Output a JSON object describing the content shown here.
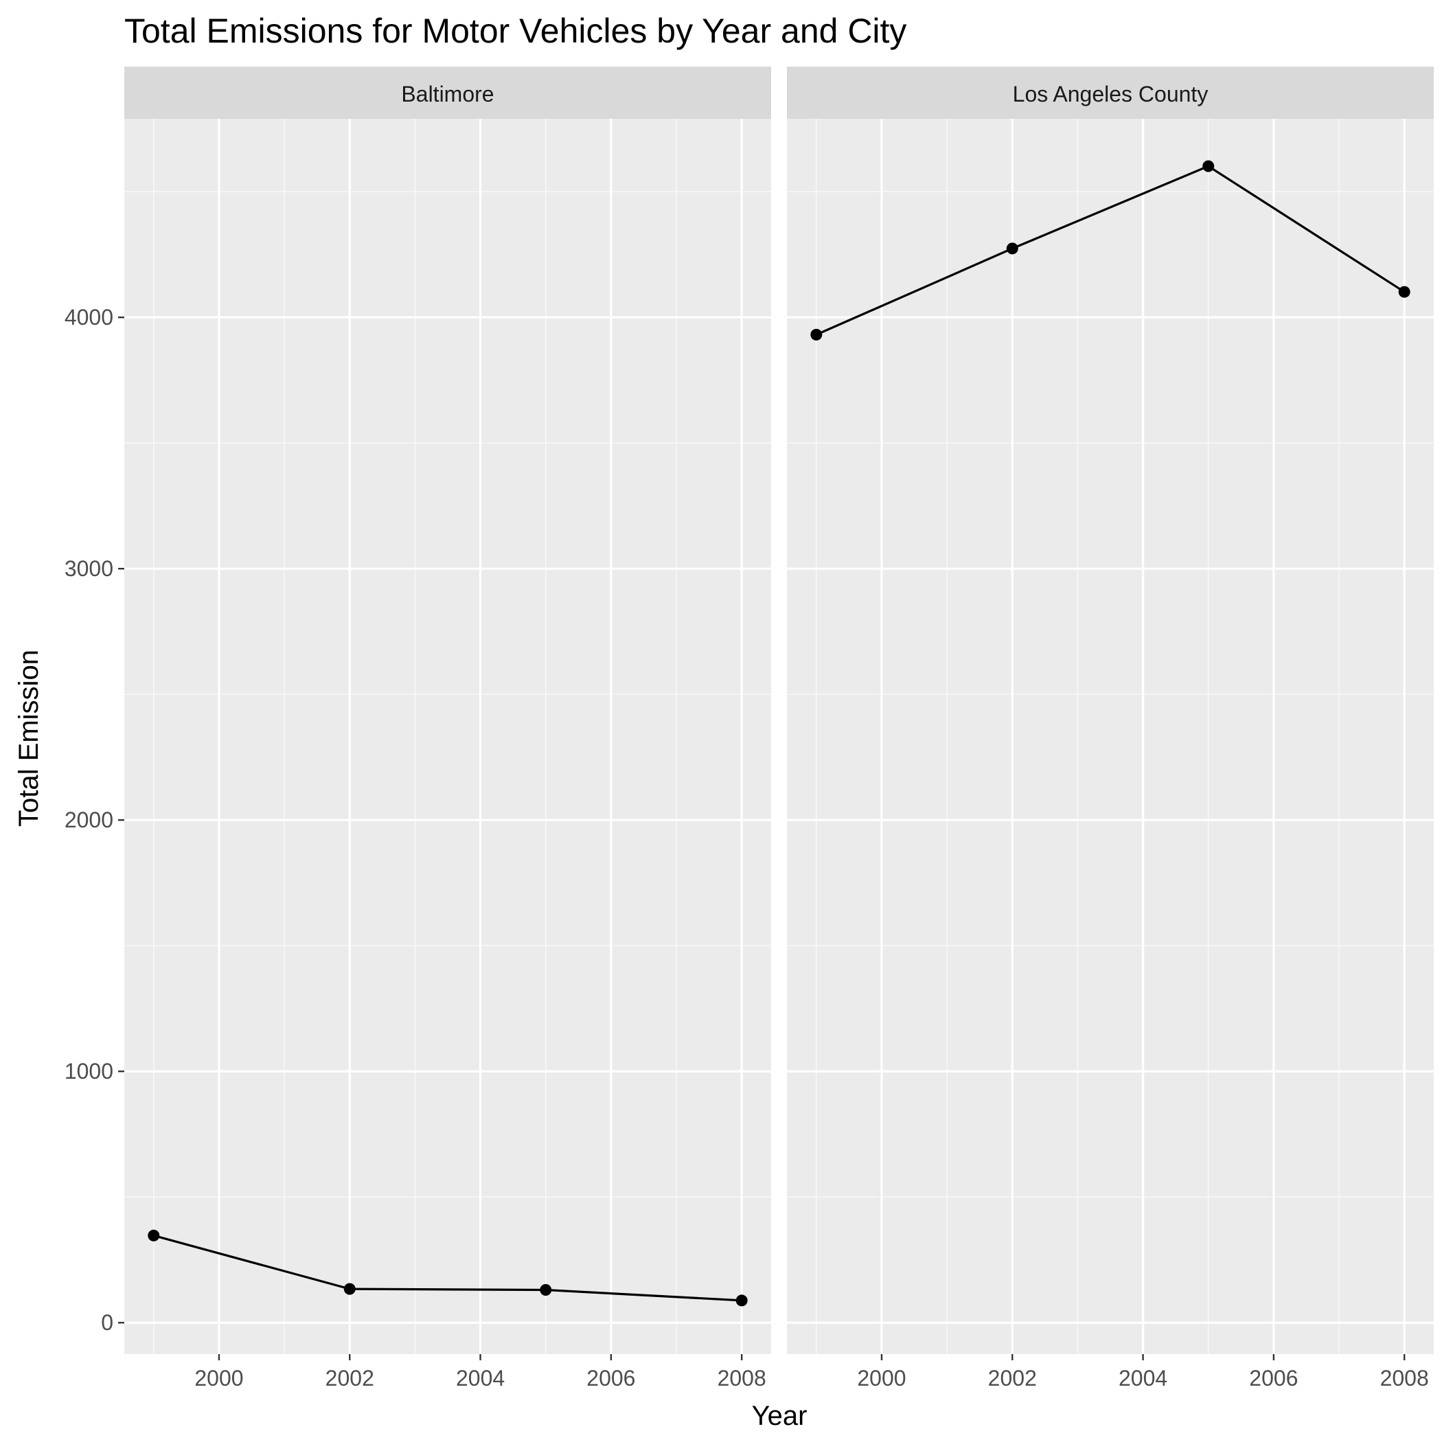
{
  "chart_data": {
    "type": "line",
    "title": "Total Emissions for Motor Vehicles by Year and City",
    "xlabel": "Year",
    "ylabel": "Total Emission",
    "xlim": [
      1998.55,
      2008.45
    ],
    "ylim": [
      -125,
      4790
    ],
    "x_ticks": [
      2000,
      2002,
      2004,
      2006,
      2008
    ],
    "x_ticks_labels": [
      "2000",
      "2002",
      "2004",
      "2006",
      "2008"
    ],
    "y_ticks": [
      0,
      1000,
      2000,
      3000,
      4000
    ],
    "y_ticks_labels": [
      "0",
      "1000",
      "2000",
      "3000",
      "4000"
    ],
    "grid": true,
    "panels": [
      {
        "label": "Baltimore",
        "x": [
          1999,
          2002,
          2005,
          2008
        ],
        "values": [
          346.8,
          134.3,
          130.4,
          88.3
        ]
      },
      {
        "label": "Los Angeles County",
        "x": [
          1999,
          2002,
          2005,
          2008
        ],
        "values": [
          3931.1,
          4274.0,
          4601.4,
          4101.3
        ]
      }
    ],
    "colors": {
      "panel_bg": "#ebebeb",
      "strip_bg": "#d9d9d9",
      "grid_major": "#ffffff",
      "grid_minor": "#f7f7f7",
      "line": "#000000",
      "tick": "#333333"
    }
  }
}
